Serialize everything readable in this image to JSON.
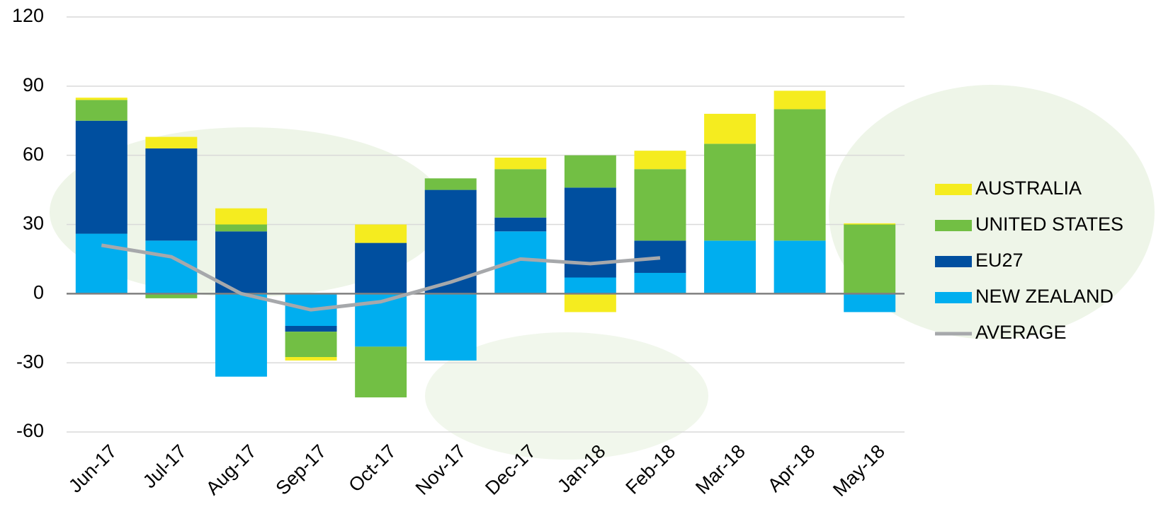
{
  "chart_data": {
    "type": "bar",
    "stacked": true,
    "categories": [
      "Jun-17",
      "Jul-17",
      "Aug-17",
      "Sep-17",
      "Oct-17",
      "Nov-17",
      "Dec-17",
      "Jan-18",
      "Feb-18",
      "Mar-18",
      "Apr-18",
      "May-18"
    ],
    "series": [
      {
        "name": "NEW ZEALAND",
        "color": "#00aeef",
        "values": [
          26,
          23,
          -36,
          -14,
          -23,
          -29,
          27,
          7,
          9,
          23,
          23,
          -8
        ]
      },
      {
        "name": "EU27",
        "color": "#004f9f",
        "values": [
          49,
          40,
          27,
          -2.5,
          22,
          45,
          6,
          39,
          14,
          0,
          0,
          0
        ]
      },
      {
        "name": "UNITED STATES",
        "color": "#72bf44",
        "values": [
          9,
          -2,
          3,
          -11,
          -22,
          5,
          21,
          14,
          31,
          42,
          57,
          30
        ]
      },
      {
        "name": "AUSTRALIA",
        "color": "#f5ec1f",
        "values": [
          1,
          5,
          7,
          -1.5,
          8,
          0,
          5,
          -8,
          8,
          13,
          8,
          0.5
        ]
      },
      {
        "name": "AVERAGE",
        "color": "#a6a8ab",
        "type": "line",
        "values": [
          21,
          16,
          0,
          -7,
          -3.5,
          5,
          15,
          13,
          15.5,
          null,
          null,
          null
        ]
      }
    ],
    "ylim": [
      -60,
      120
    ],
    "yticks": [
      -60,
      -30,
      0,
      30,
      60,
      90,
      120
    ],
    "grid": true,
    "legend": "right"
  }
}
